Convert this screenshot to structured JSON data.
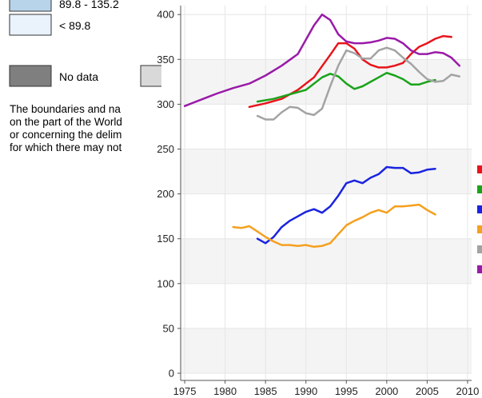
{
  "map_legend": {
    "ranges": [
      "89.8 - 135.2",
      "< 89.8"
    ],
    "no_data": "No data",
    "disclaimer": [
      "The boundaries and na",
      "on the part of the World",
      "or concerning the delim",
      "for which there may not"
    ]
  },
  "chart_data": {
    "type": "line",
    "grid": true,
    "xlim": [
      1974.5,
      2010.5
    ],
    "xticks": [
      1975,
      1980,
      1985,
      1990,
      1995,
      2000,
      2005,
      2010
    ],
    "ylim": [
      -8,
      410
    ],
    "yticks": [
      0,
      50,
      100,
      150,
      200,
      250,
      300,
      350,
      400
    ],
    "series": [
      {
        "color": "#e8141c",
        "x": [
          1983,
          1985,
          1987,
          1989,
          1991,
          1993,
          1994,
          1995,
          1996,
          1997,
          1998,
          1999,
          2000,
          2001,
          2002,
          2003,
          2004,
          2005,
          2006,
          2007,
          2008
        ],
        "values": [
          297,
          301,
          306,
          316,
          330,
          355,
          368,
          368,
          362,
          350,
          344,
          341,
          341,
          343,
          346,
          356,
          364,
          368,
          373,
          376,
          375
        ]
      },
      {
        "color": "#1aa31a",
        "x": [
          1984,
          1986,
          1988,
          1990,
          1992,
          1993,
          1994,
          1995,
          1996,
          1997,
          1998,
          1999,
          2000,
          2001,
          2002,
          2003,
          2004,
          2005,
          2006
        ],
        "values": [
          303,
          306,
          311,
          316,
          330,
          334,
          331,
          323,
          317,
          320,
          325,
          330,
          335,
          332,
          328,
          322,
          322,
          325,
          327
        ]
      },
      {
        "color": "#1a23e0",
        "x": [
          1984,
          1985,
          1986,
          1987,
          1988,
          1989,
          1990,
          1991,
          1992,
          1993,
          1994,
          1995,
          1996,
          1997,
          1998,
          1999,
          2000,
          2001,
          2002,
          2003,
          2004,
          2005,
          2006
        ],
        "values": [
          150,
          145,
          152,
          163,
          170,
          175,
          180,
          183,
          179,
          186,
          198,
          212,
          215,
          212,
          218,
          222,
          230,
          229,
          229,
          223,
          224,
          227,
          228
        ]
      },
      {
        "color": "#f5a01e",
        "x": [
          1981,
          1982,
          1983,
          1984,
          1985,
          1986,
          1987,
          1988,
          1989,
          1990,
          1991,
          1992,
          1993,
          1994,
          1995,
          1996,
          1997,
          1998,
          1999,
          2000,
          2001,
          2002,
          2003,
          2004,
          2005,
          2006
        ],
        "values": [
          163,
          162,
          164,
          158,
          152,
          147,
          143,
          143,
          142,
          143,
          141,
          142,
          145,
          155,
          165,
          170,
          174,
          179,
          182,
          179,
          186,
          186,
          187,
          188,
          182,
          177
        ]
      },
      {
        "color": "#a3a3a3",
        "x": [
          1984,
          1985,
          1986,
          1987,
          1988,
          1989,
          1990,
          1991,
          1992,
          1993,
          1994,
          1995,
          1996,
          1997,
          1998,
          1999,
          2000,
          2001,
          2002,
          2003,
          2004,
          2005,
          2006,
          2007,
          2008,
          2009
        ],
        "values": [
          287,
          283,
          283,
          291,
          297,
          296,
          290,
          288,
          295,
          320,
          343,
          360,
          357,
          351,
          351,
          360,
          363,
          360,
          352,
          345,
          336,
          328,
          325,
          326,
          333,
          331
        ]
      },
      {
        "color": "#9a1aa8",
        "x": [
          1975,
          1977,
          1979,
          1981,
          1983,
          1985,
          1987,
          1989,
          1991,
          1992,
          1993,
          1994,
          1995,
          1996,
          1997,
          1998,
          1999,
          2000,
          2001,
          2002,
          2003,
          2004,
          2005,
          2006,
          2007,
          2008,
          2009
        ],
        "values": [
          298,
          305,
          312,
          318,
          323,
          332,
          343,
          356,
          388,
          400,
          394,
          378,
          370,
          368,
          368,
          369,
          371,
          374,
          373,
          368,
          360,
          356,
          356,
          358,
          357,
          352,
          343
        ]
      }
    ]
  }
}
